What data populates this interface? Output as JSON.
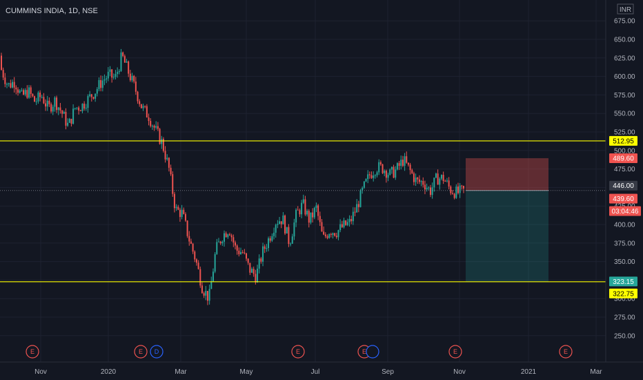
{
  "chart_data": {
    "type": "candlestick",
    "title": "CUMMINS INDIA, 1D, NSE",
    "currency": "INR",
    "x_labels": [
      "Nov",
      "2020",
      "Mar",
      "May",
      "Jul",
      "Sep",
      "Nov",
      "2021",
      "Mar"
    ],
    "y_ticks": [
      "675.00",
      "650.00",
      "625.00",
      "600.00",
      "575.00",
      "550.00",
      "525.00",
      "500.00",
      "475.00",
      "450.00",
      "425.00",
      "400.00",
      "375.00",
      "350.00",
      "325.00",
      "300.00",
      "275.00",
      "250.00"
    ],
    "ylim": [
      245,
      690
    ],
    "grid": true,
    "colors": {
      "up": "#26a69a",
      "down": "#ef5350",
      "level": "#ffff00",
      "background": "#131722",
      "grid": "#1e2230"
    },
    "horizontal_levels": [
      {
        "value": 512.95,
        "label": "512.95"
      },
      {
        "value": 322.75,
        "label": "322.75"
      }
    ],
    "price_tags": [
      {
        "value": 489.6,
        "label": "489.60",
        "color": "#ef5350",
        "text": "#ffffff"
      },
      {
        "value": 446.0,
        "label": "446.00",
        "color": "#363a45",
        "text": "#ffffff"
      },
      {
        "value": 439.6,
        "label": "439.60",
        "color": "#ef5350",
        "text": "#ffffff"
      },
      {
        "value": 323.15,
        "label": "323.15",
        "color": "#26a69a",
        "text": "#ffffff"
      }
    ],
    "countdown": "03:04:46",
    "position": {
      "entry": 446.0,
      "stop": 489.6,
      "target": 323.15,
      "direction": "short"
    },
    "events": [
      {
        "label": "E",
        "type": "earnings"
      },
      {
        "label": "E",
        "type": "earnings"
      },
      {
        "label": "D",
        "type": "dividend"
      },
      {
        "label": "E",
        "type": "earnings"
      },
      {
        "label": "E",
        "type": "earnings"
      },
      {
        "label": "",
        "type": "dividend"
      },
      {
        "label": "E",
        "type": "earnings"
      },
      {
        "label": "E",
        "type": "earnings"
      }
    ],
    "price_path": [
      [
        628,
        590
      ],
      [
        615,
        560
      ],
      [
        602,
        585
      ],
      [
        590,
        555
      ],
      [
        578,
        582
      ],
      [
        572,
        560
      ],
      [
        580,
        568
      ],
      [
        568,
        545
      ],
      [
        560,
        575
      ],
      [
        555,
        548
      ],
      [
        545,
        520
      ],
      [
        560,
        555
      ],
      [
        572,
        548
      ],
      [
        560,
        580
      ],
      [
        590,
        570
      ],
      [
        602,
        585
      ],
      [
        598,
        605
      ],
      [
        610,
        585
      ],
      [
        605,
        650
      ],
      [
        620,
        590
      ],
      [
        590,
        575
      ],
      [
        570,
        545
      ],
      [
        545,
        548
      ],
      [
        525,
        530
      ],
      [
        500,
        520
      ],
      [
        480,
        472
      ],
      [
        440,
        400
      ],
      [
        410,
        420
      ],
      [
        390,
        372
      ],
      [
        365,
        340
      ],
      [
        330,
        300
      ],
      [
        290,
        310
      ],
      [
        350,
        380
      ],
      [
        395,
        375
      ],
      [
        410,
        380
      ],
      [
        360,
        372
      ],
      [
        380,
        345
      ],
      [
        350,
        330
      ],
      [
        320,
        340
      ],
      [
        350,
        375
      ],
      [
        385,
        380
      ],
      [
        400,
        410
      ],
      [
        420,
        395
      ],
      [
        380,
        370
      ],
      [
        410,
        415
      ],
      [
        430,
        425
      ],
      [
        400,
        410
      ],
      [
        435,
        410
      ],
      [
        380,
        380
      ],
      [
        395,
        390
      ],
      [
        385,
        395
      ],
      [
        405,
        390
      ],
      [
        400,
        405
      ],
      [
        415,
        430
      ],
      [
        440,
        455
      ],
      [
        465,
        470
      ],
      [
        480,
        475
      ],
      [
        470,
        482
      ],
      [
        465,
        470
      ],
      [
        478,
        470
      ],
      [
        490,
        485
      ],
      [
        480,
        465
      ],
      [
        460,
        455
      ],
      [
        455,
        460
      ],
      [
        450,
        440
      ],
      [
        465,
        460
      ],
      [
        470,
        455
      ],
      [
        450,
        445
      ],
      [
        440,
        445
      ],
      [
        445,
        446
      ]
    ]
  }
}
